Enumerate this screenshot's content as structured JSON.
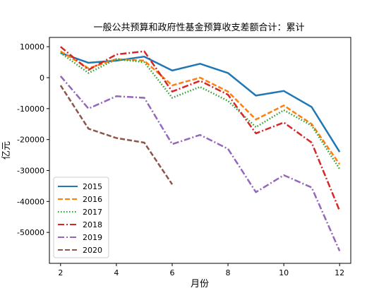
{
  "chart_data": {
    "type": "line",
    "title": "一般公共预算和政府性基金预算收支差额合计：累计",
    "xlabel": "月份",
    "ylabel": "亿元",
    "x_ticks": [
      2,
      4,
      6,
      8,
      10,
      12
    ],
    "y_ticks": [
      10000,
      0,
      -10000,
      -20000,
      -30000,
      -40000,
      -50000
    ],
    "xlim": [
      1.6,
      12.4
    ],
    "ylim": [
      -60000,
      13000
    ],
    "legend_position": "lower-left",
    "grid": false,
    "x": [
      2,
      3,
      4,
      5,
      6,
      7,
      8,
      9,
      10,
      11,
      12
    ],
    "series": [
      {
        "name": "2015",
        "color": "#1f77b4",
        "dash": "solid",
        "values": [
          8000,
          4800,
          5500,
          6800,
          2300,
          4500,
          1500,
          -5800,
          -4300,
          -9500,
          -24000
        ]
      },
      {
        "name": "2016",
        "color": "#ff7f0e",
        "dash": "dashed",
        "values": [
          8500,
          3000,
          6000,
          5500,
          -2500,
          0,
          -4500,
          -13500,
          -9000,
          -15000,
          -28000
        ]
      },
      {
        "name": "2017",
        "color": "#2ca02c",
        "dash": "dotted",
        "values": [
          8000,
          1500,
          6000,
          5000,
          -6500,
          -3000,
          -7500,
          -16000,
          -10500,
          -15500,
          -29500
        ]
      },
      {
        "name": "2018",
        "color": "#d62728",
        "dash": "dashdot",
        "values": [
          10000,
          2500,
          7500,
          8500,
          -4500,
          -1000,
          -5500,
          -18000,
          -14500,
          -21000,
          -43000
        ]
      },
      {
        "name": "2019",
        "color": "#9467bd",
        "dash": "dashdot",
        "values": [
          500,
          -10000,
          -6000,
          -6500,
          -21500,
          -18500,
          -23000,
          -37000,
          -31500,
          -35500,
          -56000
        ]
      },
      {
        "name": "2020",
        "color": "#8c564b",
        "dash": "dashed",
        "values": [
          -2500,
          -16500,
          -19500,
          -21000,
          -34500,
          null,
          null,
          null,
          null,
          null,
          null
        ]
      }
    ]
  }
}
